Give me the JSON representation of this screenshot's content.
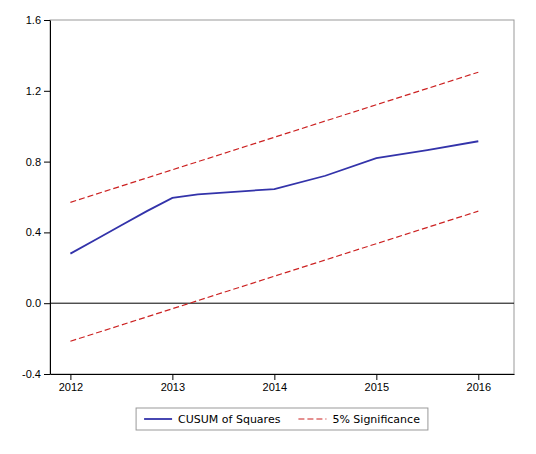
{
  "chart_data": {
    "type": "line",
    "series": [
      {
        "name": "CUSUM of Squares",
        "color": "#3333aa",
        "line_style": "solid",
        "x": [
          2012,
          2012.25,
          2012.5,
          2012.75,
          2013,
          2013.25,
          2013.5,
          2013.75,
          2014,
          2014.5,
          2015,
          2015.5,
          2016
        ],
        "values": [
          0.28,
          0.36,
          0.44,
          0.52,
          0.595,
          0.615,
          0.625,
          0.635,
          0.645,
          0.72,
          0.82,
          0.865,
          0.915
        ]
      },
      {
        "name": "5% Significance",
        "color": "#cc2222",
        "line_style": "dashed",
        "x": [
          2012,
          2016
        ],
        "values": [
          0.57,
          1.305
        ]
      },
      {
        "color": "#cc2222",
        "line_style": "dashed",
        "x": [
          2012,
          2016
        ],
        "values": [
          -0.215,
          0.52
        ]
      }
    ],
    "reference_lines": [
      {
        "value": 0,
        "color": "#000000"
      }
    ],
    "xlim": [
      2011.8,
      2016.35
    ],
    "ylim": [
      -0.4,
      1.6
    ],
    "xticks": [
      2012,
      2013,
      2014,
      2015,
      2016
    ],
    "yticks": [
      -0.4,
      {
        "value": 0,
        "label": "0.0"
      },
      0.4,
      0.8,
      1.2,
      1.6
    ],
    "grid": false,
    "legend": "bottom"
  }
}
